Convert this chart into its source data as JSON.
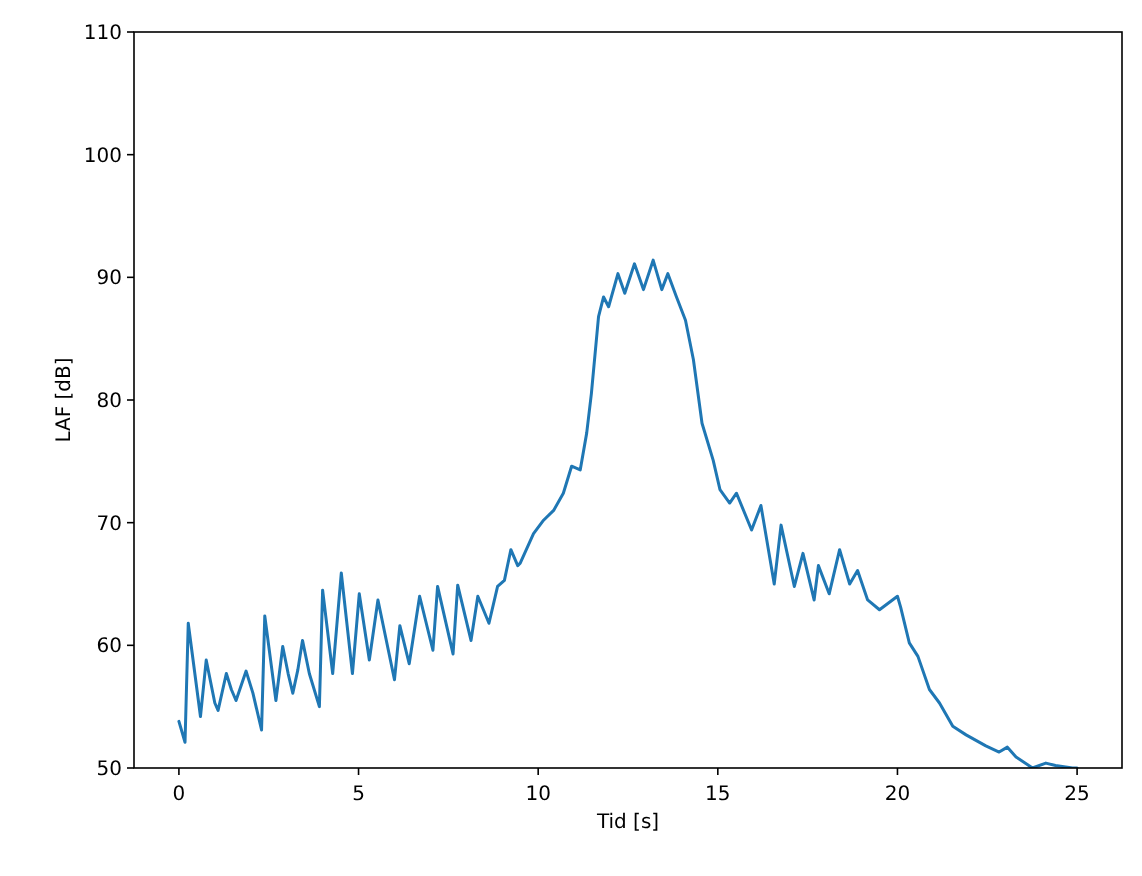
{
  "chart_data": {
    "type": "line",
    "xlabel": "Tid [s]",
    "ylabel": "LAF [dB]",
    "xlim": [
      -1.25,
      26.25
    ],
    "ylim": [
      50,
      110
    ],
    "xticks": [
      0,
      5,
      10,
      15,
      20,
      25
    ],
    "yticks": [
      50,
      60,
      70,
      80,
      90,
      100,
      110
    ],
    "grid": false,
    "marker": "none",
    "line_style": "solid",
    "series": [
      {
        "color": "#1f77b4",
        "x": [
          0,
          0.17,
          0.26,
          0.6,
          0.76,
          1.0,
          1.09,
          1.32,
          1.46,
          1.59,
          1.87,
          2.06,
          2.3,
          2.39,
          2.7,
          2.89,
          3.04,
          3.17,
          3.31,
          3.44,
          3.63,
          3.91,
          4.0,
          4.28,
          4.52,
          4.83,
          5.02,
          5.3,
          5.54,
          6.0,
          6.15,
          6.41,
          6.7,
          7.07,
          7.2,
          7.63,
          7.76,
          8.13,
          8.32,
          8.63,
          8.87,
          9.06,
          9.24,
          9.43,
          9.5,
          9.87,
          10.15,
          10.43,
          10.7,
          10.93,
          11.17,
          11.35,
          11.48,
          11.68,
          11.82,
          11.96,
          12.22,
          12.41,
          12.68,
          12.93,
          13.2,
          13.44,
          13.61,
          13.85,
          14.1,
          14.32,
          14.56,
          14.87,
          15.06,
          15.33,
          15.52,
          15.94,
          16.2,
          16.57,
          16.76,
          17.13,
          17.37,
          17.68,
          17.8,
          18.1,
          18.39,
          18.67,
          18.89,
          19.17,
          19.5,
          20.0,
          20.09,
          20.33,
          20.57,
          20.89,
          21.17,
          21.54,
          21.91,
          22.46,
          22.83,
          23.06,
          23.3,
          23.76,
          24.13,
          24.4,
          24.87,
          25.0
        ],
        "values": [
          53.8,
          52.1,
          61.8,
          54.2,
          58.8,
          55.3,
          54.7,
          57.7,
          56.4,
          55.5,
          57.9,
          56.1,
          53.1,
          62.4,
          55.5,
          59.9,
          57.7,
          56.1,
          58.0,
          60.4,
          57.7,
          55.0,
          64.5,
          57.7,
          65.9,
          57.7,
          64.2,
          58.8,
          63.7,
          57.2,
          61.6,
          58.5,
          64.0,
          59.6,
          64.8,
          59.3,
          64.9,
          60.4,
          64.0,
          61.8,
          64.8,
          65.3,
          67.8,
          66.5,
          66.7,
          69.1,
          70.2,
          71.0,
          72.4,
          74.6,
          74.3,
          77.3,
          80.5,
          86.8,
          88.4,
          87.6,
          90.3,
          88.7,
          91.1,
          89.0,
          91.4,
          89.0,
          90.3,
          88.4,
          86.5,
          83.3,
          78.1,
          75.1,
          72.7,
          71.6,
          72.4,
          69.4,
          71.4,
          65.0,
          69.8,
          64.8,
          67.5,
          63.7,
          66.5,
          64.2,
          67.8,
          65.0,
          66.1,
          63.7,
          62.9,
          64.0,
          63.1,
          60.2,
          59.1,
          56.4,
          55.3,
          53.4,
          52.7,
          51.8,
          51.3,
          51.7,
          50.9,
          50.0,
          50.4,
          50.2,
          50.0,
          50.0
        ]
      }
    ]
  }
}
